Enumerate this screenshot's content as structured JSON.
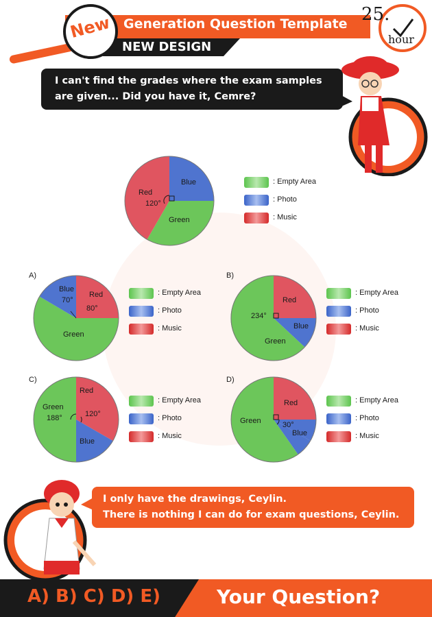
{
  "header": {
    "badge": "New",
    "title": "Generation Question Template",
    "subtitle": "NEW DESIGN",
    "timer_value": "25.",
    "timer_unit": "hour"
  },
  "dialog": {
    "top": "I can't find the grades where the exam samples are given... Did you have it, Cemre?",
    "bottom_line1": "I only have the drawings, Ceylin.",
    "bottom_line2": "There is nothing I can do for exam questions, Ceylin."
  },
  "legend": {
    "empty_area": ": Empty Area",
    "photo": ": Photo",
    "music": ": Music"
  },
  "colors": {
    "accent": "#f15a24",
    "dark": "#1a1a1a",
    "green": "#6cc65a",
    "blue": "#4f74cf",
    "red": "#e05560"
  },
  "main_chart": {
    "slices": [
      {
        "label": "Red",
        "angle": "120°",
        "color": "red"
      },
      {
        "label": "Blue",
        "angle": "",
        "color": "blue"
      },
      {
        "label": "Green",
        "angle": "",
        "color": "green"
      }
    ]
  },
  "options": {
    "a": {
      "letter": "A)",
      "green": "Green",
      "blue": "Blue",
      "blue_angle": "70°",
      "red": "Red",
      "red_angle": "80°"
    },
    "b": {
      "letter": "B)",
      "red": "Red",
      "blue": "Blue",
      "green": "Green",
      "green_angle": "234°"
    },
    "c": {
      "letter": "C)",
      "red": "Red",
      "red_angle": "120°",
      "blue": "Blue",
      "green": "Green",
      "green_angle": "188°"
    },
    "d": {
      "letter": "D)",
      "red": "Red",
      "blue": "Blue",
      "blue_angle": "30°",
      "green": "Green"
    }
  },
  "footer": {
    "options": "A) B) C) D) E)",
    "question": "Your Question?"
  }
}
